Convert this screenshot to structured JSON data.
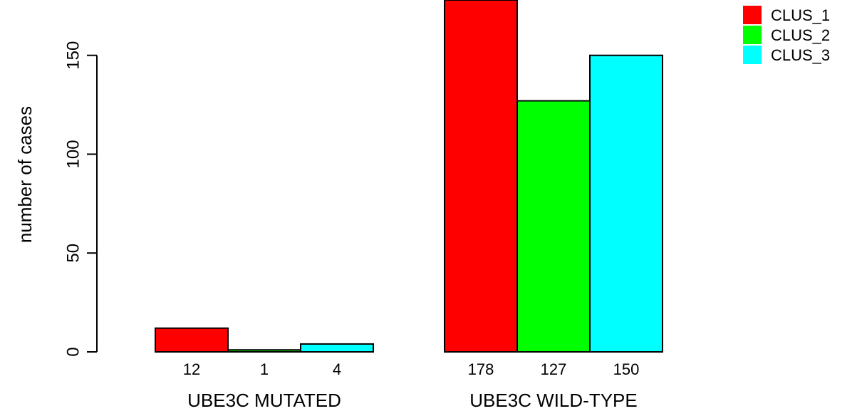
{
  "chart_data": {
    "type": "bar",
    "title": "",
    "xlabel": "",
    "ylabel": "number of cases",
    "ylim": [
      0,
      178
    ],
    "yticks": [
      0,
      50,
      100,
      150
    ],
    "grid": false,
    "legend_position": "top-right",
    "groups": [
      "UBE3C MUTATED",
      "UBE3C WILD-TYPE"
    ],
    "series": [
      {
        "name": "CLUS_1",
        "color": "#ff0000",
        "values": [
          12,
          178
        ],
        "labels": [
          "12",
          "178"
        ]
      },
      {
        "name": "CLUS_2",
        "color": "#00ff00",
        "values": [
          1,
          127
        ],
        "labels": [
          "1",
          "127"
        ]
      },
      {
        "name": "CLUS_3",
        "color": "#00ffff",
        "values": [
          4,
          150
        ],
        "labels": [
          "4",
          "150"
        ]
      }
    ]
  }
}
